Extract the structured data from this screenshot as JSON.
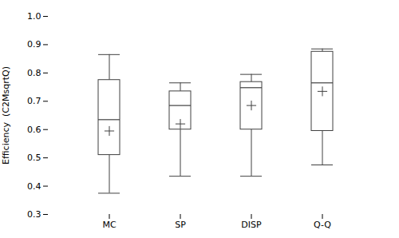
{
  "chart_data": {
    "type": "box",
    "categories": [
      "MC",
      "SP",
      "DISP",
      "Q-Q"
    ],
    "boxes": [
      {
        "whisker_low": 0.375,
        "q1": 0.51,
        "median": 0.635,
        "q3": 0.775,
        "whisker_high": 0.865,
        "mean": 0.595
      },
      {
        "whisker_low": 0.435,
        "q1": 0.6,
        "median": 0.685,
        "q3": 0.735,
        "whisker_high": 0.765,
        "mean": 0.62
      },
      {
        "whisker_low": 0.435,
        "q1": 0.6,
        "median": 0.748,
        "q3": 0.768,
        "whisker_high": 0.795,
        "mean": 0.685
      },
      {
        "whisker_low": 0.475,
        "q1": 0.595,
        "median": 0.765,
        "q3": 0.875,
        "whisker_high": 0.885,
        "mean": 0.735
      }
    ],
    "ylabel": "Efficiency  (C2MsqrtQ)",
    "ylim": [
      0.3,
      1.0
    ],
    "yticks": [
      0.3,
      0.4,
      0.5,
      0.6,
      0.7,
      0.8,
      0.9,
      {
        "value": 1.0,
        "label": "1.0"
      }
    ],
    "color": "#404040",
    "marker": "plus",
    "grid": false
  }
}
